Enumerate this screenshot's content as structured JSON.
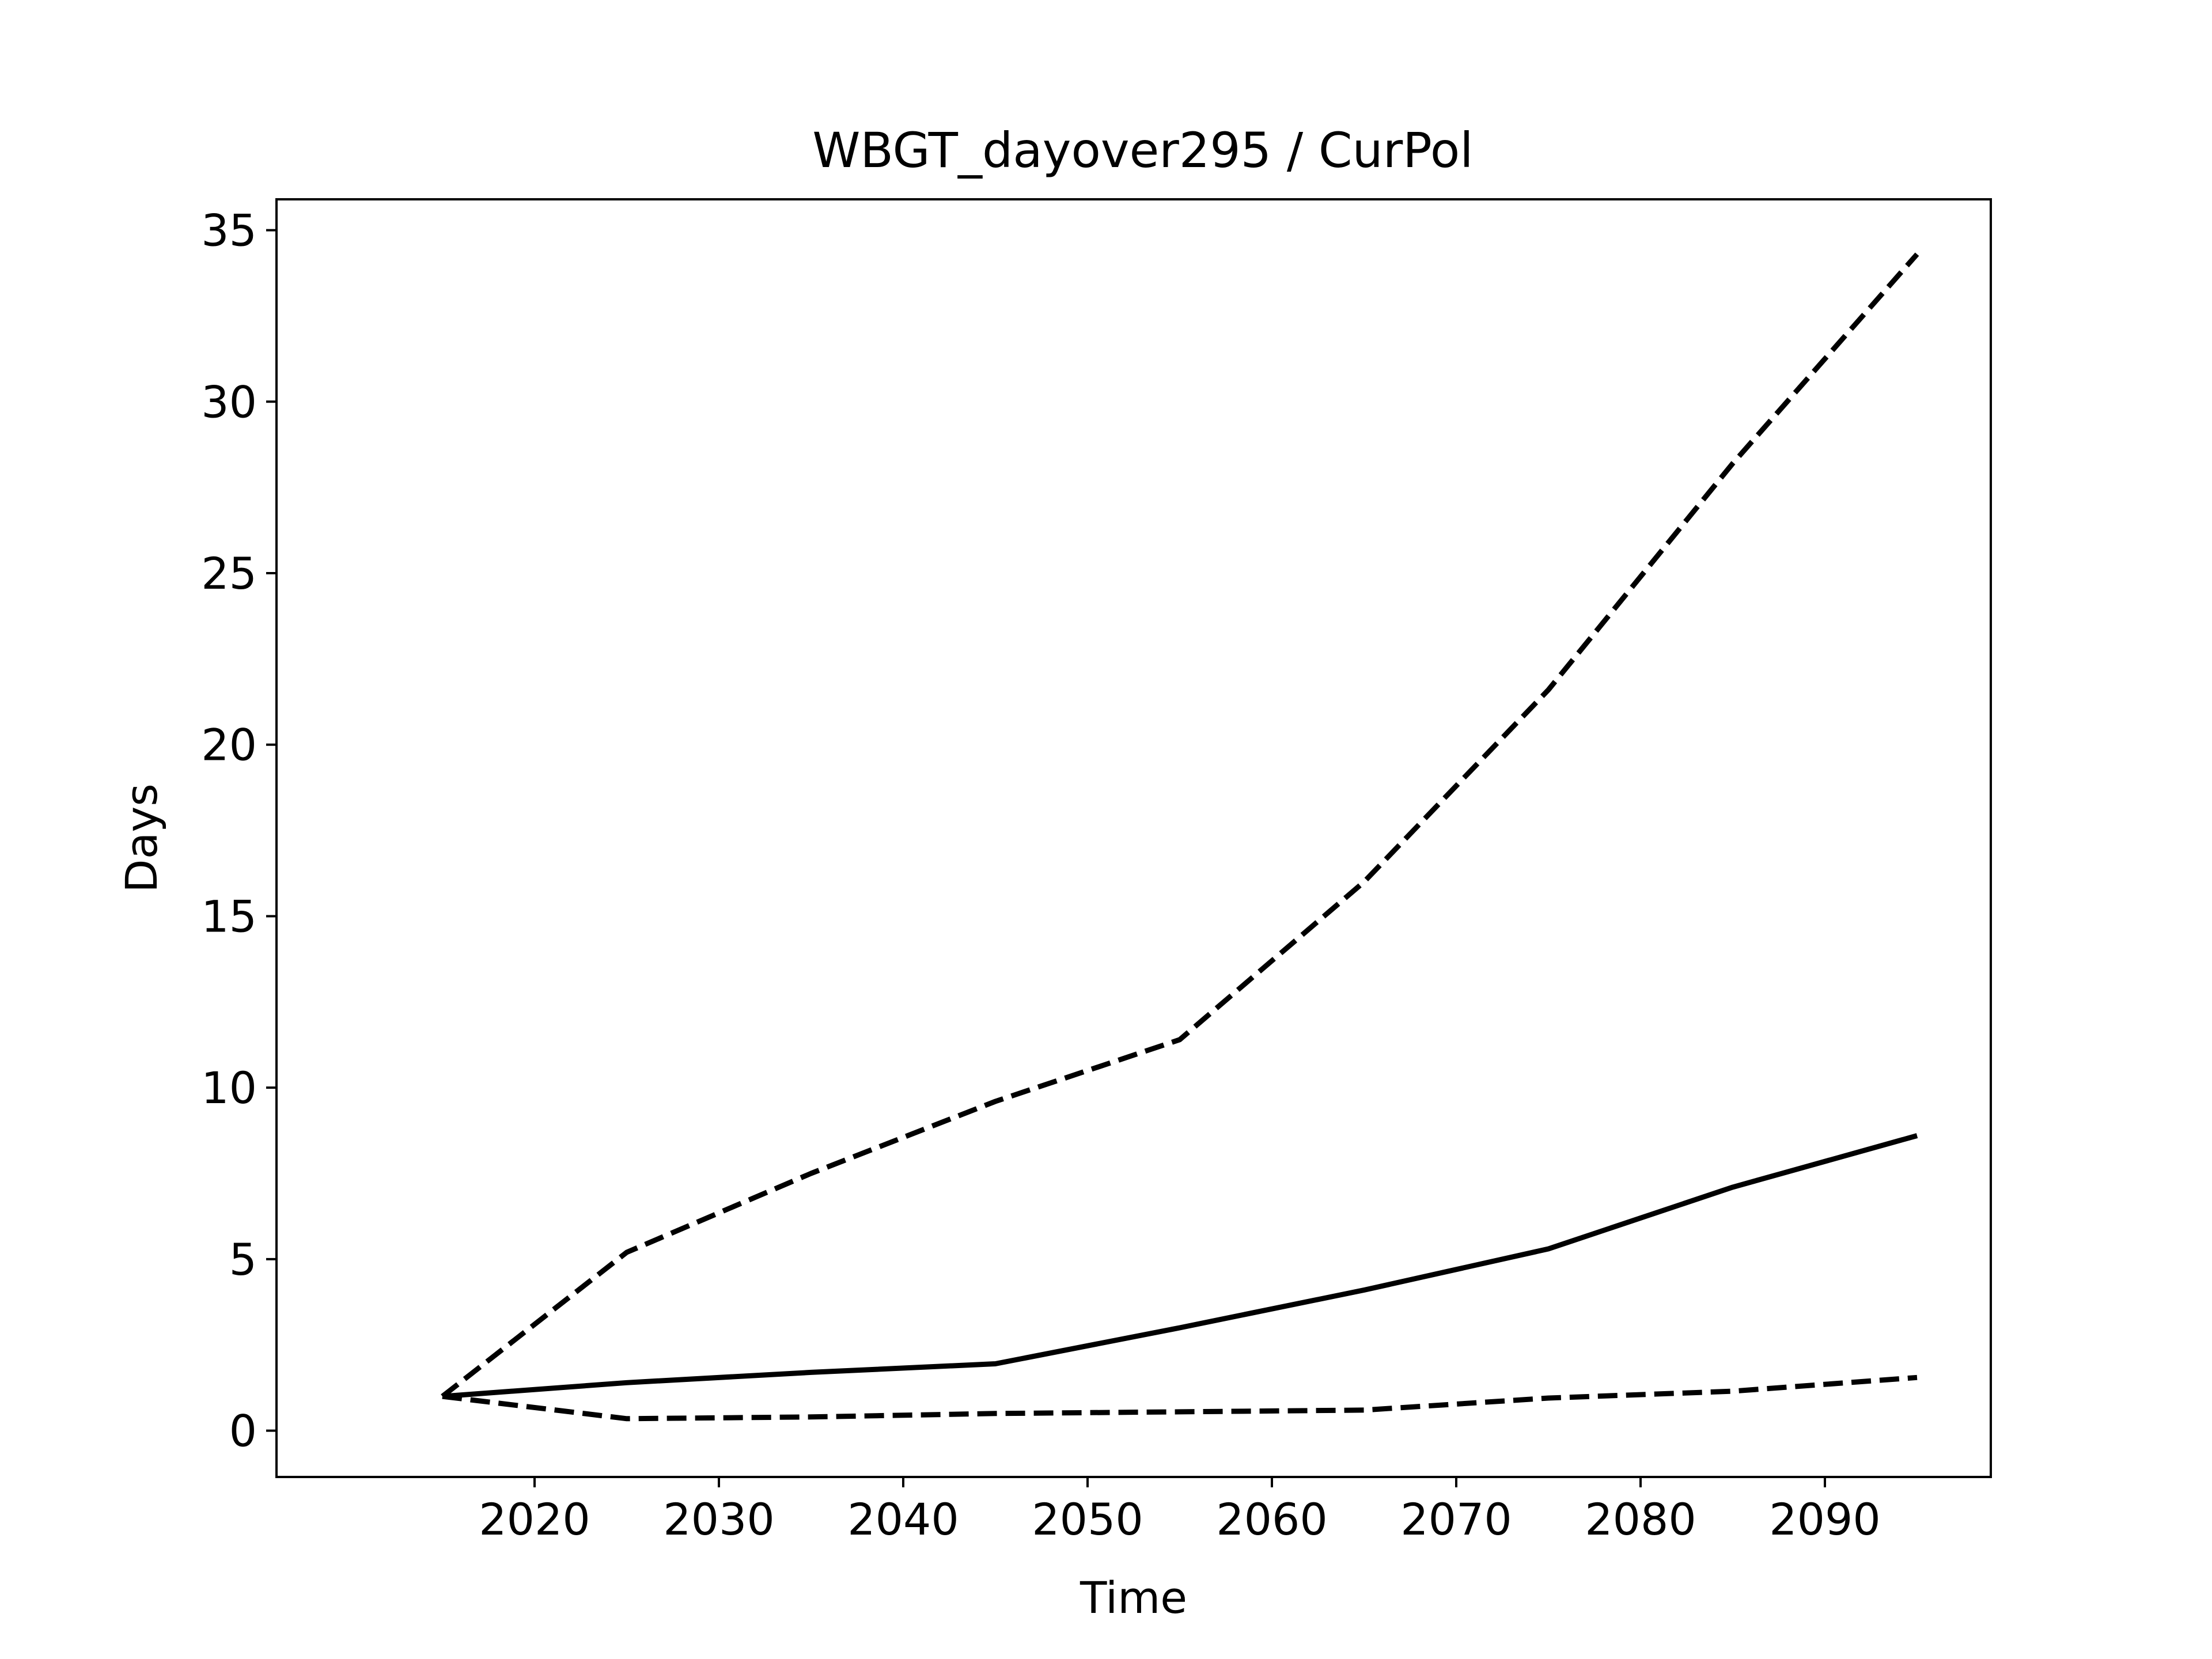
{
  "chart_data": {
    "type": "line",
    "title": "WBGT_dayover295 / CurPol",
    "xlabel": "Time",
    "ylabel": "Days",
    "x": [
      2015,
      2025,
      2035,
      2045,
      2055,
      2065,
      2075,
      2085,
      2095
    ],
    "series": [
      {
        "style": "solid",
        "color": "#000000",
        "values": [
          1.0,
          1.4,
          1.7,
          1.95,
          3.0,
          4.1,
          5.3,
          7.1,
          8.6
        ]
      },
      {
        "style": "dashed",
        "color": "#000000",
        "values": [
          1.0,
          5.2,
          7.5,
          9.6,
          11.4,
          16.0,
          21.6,
          28.2,
          34.3
        ]
      },
      {
        "style": "dashed",
        "color": "#000000",
        "values": [
          1.0,
          0.35,
          0.4,
          0.5,
          0.55,
          0.6,
          0.95,
          1.15,
          1.55
        ]
      }
    ],
    "xlim": [
      2006,
      2099
    ],
    "ylim": [
      -1.35,
      35.9
    ],
    "xticks": [
      2020,
      2030,
      2040,
      2050,
      2060,
      2070,
      2080,
      2090
    ],
    "yticks": [
      0,
      5,
      10,
      15,
      20,
      25,
      30,
      35
    ],
    "xtick_labels": [
      "2020",
      "2030",
      "2040",
      "2050",
      "2060",
      "2070",
      "2080",
      "2090"
    ],
    "ytick_labels": [
      "0",
      "5",
      "10",
      "15",
      "20",
      "25",
      "30",
      "35"
    ],
    "grid": false,
    "legend": "none"
  }
}
